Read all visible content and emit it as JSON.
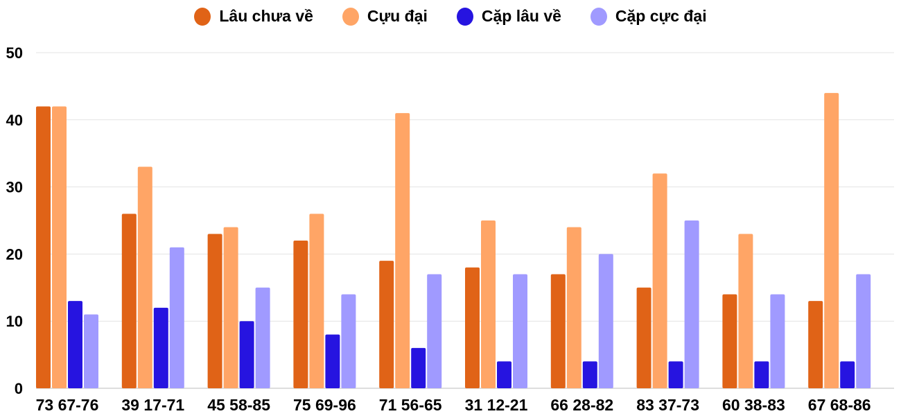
{
  "chart_data": {
    "type": "bar",
    "categories": [
      "73 67-76",
      "39 17-71",
      "45 58-85",
      "75 69-96",
      "71 56-65",
      "31 12-21",
      "66 28-82",
      "83 37-73",
      "60 38-83",
      "67 68-86"
    ],
    "series": [
      {
        "name": "Lâu chưa về",
        "color": "#e06317",
        "values": [
          42,
          26,
          23,
          22,
          19,
          18,
          17,
          15,
          14,
          13
        ]
      },
      {
        "name": "Cựu đại",
        "color": "#ffa566",
        "values": [
          42,
          33,
          24,
          26,
          41,
          25,
          24,
          32,
          23,
          44
        ]
      },
      {
        "name": "Cặp lâu về",
        "color": "#2614e0",
        "values": [
          13,
          12,
          10,
          8,
          6,
          4,
          4,
          4,
          4,
          4
        ]
      },
      {
        "name": "Cặp cực đại",
        "color": "#a09aff",
        "values": [
          11,
          21,
          15,
          14,
          17,
          17,
          20,
          25,
          14,
          17
        ]
      }
    ],
    "yticks": [
      0,
      10,
      20,
      30,
      40,
      50
    ],
    "ylim": [
      0,
      50
    ],
    "grid": true,
    "legend": "top"
  }
}
